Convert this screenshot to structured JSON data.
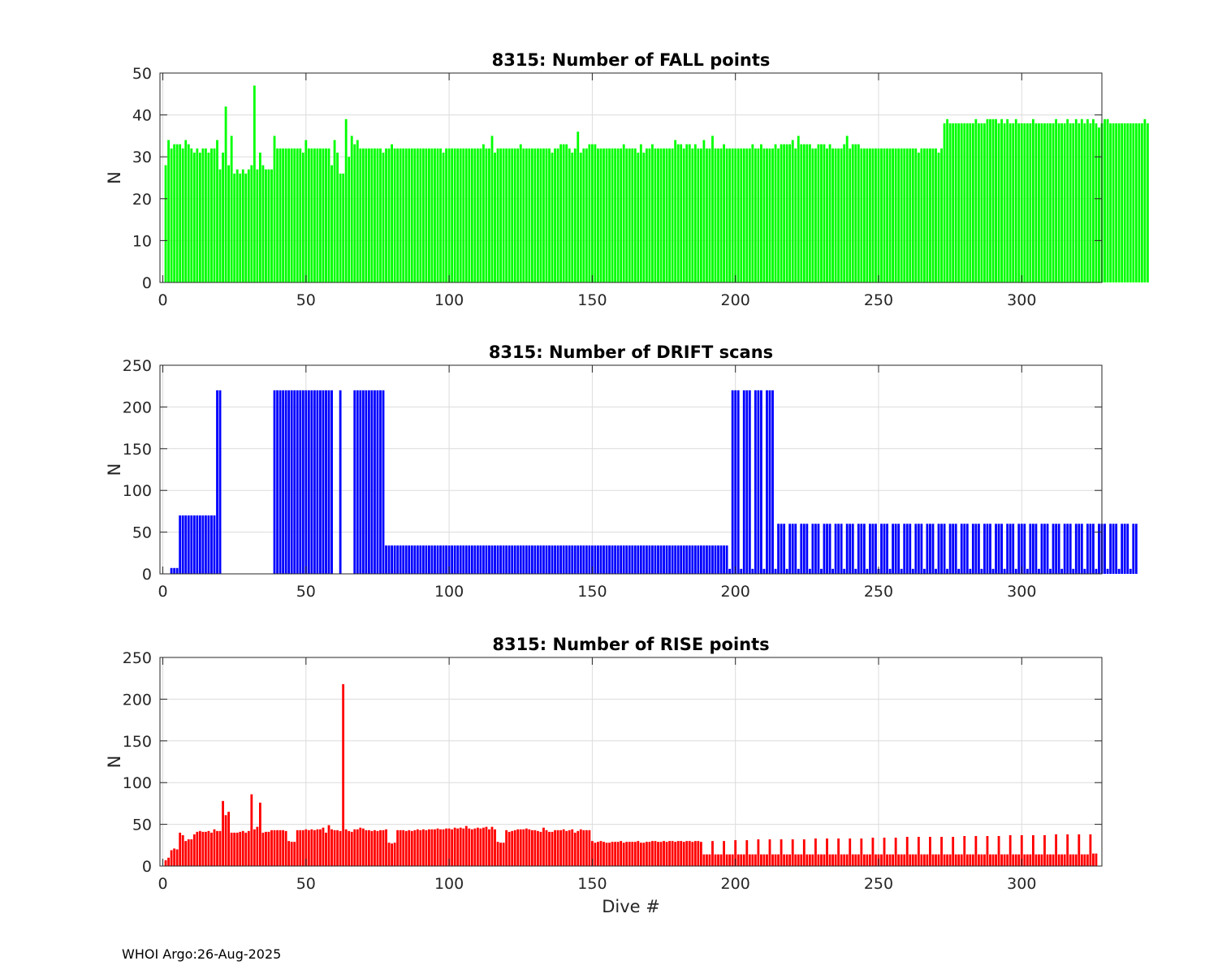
{
  "footer": "WHOI Argo:26-Aug-2025",
  "chart_data": [
    {
      "type": "bar",
      "title": "8315: Number of FALL points",
      "xlabel": "",
      "ylabel": "N",
      "xlim": [
        -1,
        328
      ],
      "ylim": [
        0,
        50
      ],
      "xticks": [
        0,
        50,
        100,
        150,
        200,
        250,
        300
      ],
      "yticks": [
        0,
        10,
        20,
        30,
        40,
        50
      ],
      "grid": true,
      "color": "#00ff00",
      "x_start": 1,
      "values": [
        28,
        34,
        32,
        33,
        33,
        33,
        32,
        34,
        33,
        32,
        31,
        32,
        31,
        32,
        32,
        31,
        32,
        32,
        34,
        27,
        31,
        42,
        28,
        35,
        26,
        27,
        26,
        27,
        26,
        27,
        28,
        47,
        27,
        31,
        28,
        27,
        27,
        27,
        35,
        32,
        32,
        32,
        32,
        32,
        32,
        32,
        32,
        32,
        31,
        34,
        32,
        32,
        32,
        32,
        32,
        32,
        32,
        32,
        28,
        34,
        31,
        26,
        26,
        39,
        30,
        35,
        33,
        34,
        32,
        32,
        32,
        32,
        32,
        32,
        32,
        32,
        31,
        32,
        32,
        33,
        32,
        32,
        32,
        32,
        32,
        32,
        32,
        32,
        32,
        32,
        32,
        32,
        32,
        32,
        32,
        32,
        32,
        31,
        32,
        32,
        32,
        32,
        32,
        32,
        32,
        32,
        32,
        32,
        32,
        32,
        32,
        33,
        32,
        32,
        35,
        31,
        32,
        32,
        32,
        32,
        32,
        32,
        32,
        32,
        33,
        32,
        32,
        32,
        32,
        32,
        32,
        32,
        32,
        32,
        32,
        31,
        32,
        32,
        33,
        33,
        33,
        32,
        31,
        32,
        36,
        31,
        32,
        32,
        33,
        33,
        33,
        32,
        32,
        32,
        32,
        32,
        32,
        32,
        32,
        32,
        33,
        32,
        32,
        32,
        32,
        31,
        33,
        31,
        32,
        32,
        33,
        32,
        32,
        32,
        32,
        32,
        32,
        32,
        34,
        33,
        33,
        32,
        33,
        33,
        32,
        33,
        32,
        32,
        34,
        32,
        32,
        35,
        32,
        32,
        32,
        33,
        32,
        32,
        32,
        32,
        32,
        32,
        32,
        32,
        32,
        33,
        32,
        32,
        33,
        32,
        32,
        32,
        32,
        33,
        32,
        33,
        33,
        33,
        33,
        34,
        32,
        35,
        33,
        33,
        33,
        33,
        32,
        32,
        33,
        33,
        33,
        32,
        33,
        32,
        32,
        32,
        32,
        33,
        35,
        32,
        33,
        33,
        33,
        32,
        32,
        32,
        32,
        32,
        32,
        32,
        32,
        32,
        32,
        32,
        32,
        32,
        32,
        32,
        32,
        32,
        32,
        32,
        32,
        31,
        32,
        32,
        32,
        32,
        32,
        32,
        31,
        32,
        38,
        39,
        38,
        38,
        38,
        38,
        38,
        38,
        38,
        38,
        38,
        39,
        38,
        38,
        38,
        39,
        39,
        39,
        39,
        38,
        39,
        38,
        39,
        38,
        38,
        39,
        38,
        38,
        38,
        38,
        38,
        39,
        38,
        38,
        38,
        38,
        38,
        38,
        38,
        39,
        38,
        38,
        38,
        39,
        38,
        38,
        39,
        38,
        39,
        38,
        39,
        38,
        39,
        38,
        37,
        38,
        39,
        39,
        38,
        38,
        38,
        38,
        38,
        38,
        38,
        38,
        38,
        38,
        38,
        38,
        39,
        38
      ]
    },
    {
      "type": "bar",
      "title": "8315: Number of DRIFT scans",
      "xlabel": "",
      "ylabel": "N",
      "xlim": [
        -1,
        328
      ],
      "ylim": [
        0,
        250
      ],
      "xticks": [
        0,
        50,
        100,
        150,
        200,
        250,
        300
      ],
      "yticks": [
        0,
        50,
        100,
        150,
        200,
        250
      ],
      "grid": true,
      "color": "#0000ff",
      "x_start": 1,
      "values": [
        0,
        0,
        7,
        7,
        7,
        70,
        70,
        70,
        70,
        70,
        70,
        70,
        70,
        70,
        70,
        70,
        70,
        70,
        220,
        220,
        0,
        0,
        0,
        0,
        0,
        0,
        0,
        0,
        0,
        0,
        0,
        0,
        0,
        0,
        0,
        0,
        0,
        0,
        220,
        220,
        220,
        220,
        220,
        220,
        220,
        220,
        220,
        220,
        220,
        220,
        220,
        220,
        220,
        220,
        220,
        220,
        220,
        220,
        220,
        0,
        0,
        220,
        0,
        0,
        0,
        0,
        220,
        220,
        220,
        220,
        220,
        220,
        220,
        220,
        220,
        220,
        220,
        34,
        34,
        34,
        34,
        34,
        34,
        34,
        34,
        34,
        34,
        34,
        34,
        34,
        34,
        34,
        34,
        34,
        34,
        34,
        34,
        34,
        34,
        34,
        34,
        34,
        34,
        34,
        34,
        34,
        34,
        34,
        34,
        34,
        34,
        34,
        34,
        34,
        34,
        34,
        34,
        34,
        34,
        34,
        34,
        34,
        34,
        34,
        34,
        34,
        34,
        34,
        34,
        34,
        34,
        34,
        34,
        34,
        34,
        34,
        34,
        34,
        34,
        34,
        34,
        34,
        34,
        34,
        34,
        34,
        34,
        34,
        34,
        34,
        34,
        34,
        34,
        34,
        34,
        34,
        34,
        34,
        34,
        34,
        34,
        34,
        34,
        34,
        34,
        34,
        34,
        34,
        34,
        34,
        34,
        34,
        34,
        34,
        34,
        34,
        34,
        34,
        34,
        34,
        34,
        34,
        34,
        34,
        34,
        34,
        34,
        34,
        34,
        34,
        34,
        34,
        34,
        34,
        34,
        34,
        34,
        6,
        220,
        220,
        220,
        6,
        220,
        220,
        220,
        6,
        220,
        220,
        220,
        6,
        220,
        220,
        220,
        6,
        60,
        60,
        60,
        6,
        60,
        60,
        60,
        6,
        60,
        60,
        60,
        6,
        60,
        60,
        60,
        6,
        60,
        60,
        60,
        6,
        60,
        60,
        60,
        6,
        60,
        60,
        60,
        6,
        60,
        60,
        60,
        6,
        60,
        60,
        60,
        6,
        60,
        60,
        60,
        6,
        60,
        60,
        60,
        6,
        60,
        60,
        60,
        6,
        60,
        60,
        60,
        6,
        60,
        60,
        60,
        6,
        60,
        60,
        60,
        6,
        60,
        60,
        60,
        6,
        60,
        60,
        60,
        6,
        60,
        60,
        60,
        6,
        60,
        60,
        60,
        6,
        60,
        60,
        60,
        6,
        60,
        60,
        60,
        6,
        60,
        60,
        60,
        6,
        60,
        60,
        60,
        6,
        60,
        60,
        60,
        6,
        60,
        60,
        60,
        6,
        60,
        60,
        60,
        6,
        60,
        60,
        60,
        6,
        60,
        60,
        60,
        6,
        60,
        60,
        60,
        6,
        60,
        60,
        60,
        6,
        60,
        60,
        60,
        6,
        60,
        60
      ]
    },
    {
      "type": "bar",
      "title": "8315: Number of RISE points",
      "xlabel": "Dive #",
      "ylabel": "N",
      "xlim": [
        -1,
        328
      ],
      "ylim": [
        0,
        250
      ],
      "xticks": [
        0,
        50,
        100,
        150,
        200,
        250,
        300
      ],
      "yticks": [
        0,
        50,
        100,
        150,
        200,
        250
      ],
      "grid": true,
      "color": "#ff0000",
      "x_start": 1,
      "values": [
        7,
        10,
        19,
        21,
        20,
        40,
        37,
        30,
        32,
        32,
        38,
        41,
        42,
        41,
        41,
        42,
        40,
        44,
        42,
        42,
        78,
        61,
        65,
        40,
        40,
        40,
        41,
        42,
        40,
        42,
        86,
        44,
        47,
        76,
        40,
        41,
        41,
        43,
        43,
        43,
        43,
        43,
        42,
        30,
        29,
        29,
        43,
        43,
        43,
        44,
        43,
        44,
        43,
        44,
        44,
        46,
        40,
        49,
        44,
        43,
        43,
        42,
        218,
        44,
        42,
        41,
        44,
        44,
        46,
        45,
        43,
        43,
        42,
        43,
        42,
        43,
        43,
        44,
        28,
        27,
        28,
        43,
        43,
        43,
        42,
        43,
        42,
        43,
        44,
        43,
        44,
        43,
        44,
        44,
        44,
        45,
        44,
        44,
        45,
        45,
        44,
        46,
        45,
        46,
        45,
        48,
        45,
        44,
        45,
        46,
        45,
        46,
        47,
        44,
        47,
        44,
        29,
        28,
        28,
        43,
        41,
        42,
        43,
        44,
        44,
        44,
        45,
        44,
        43,
        43,
        42,
        41,
        46,
        43,
        41,
        41,
        43,
        43,
        43,
        44,
        42,
        43,
        44,
        40,
        42,
        44,
        43,
        43,
        43,
        30,
        28,
        29,
        30,
        29,
        28,
        28,
        29,
        29,
        29,
        30,
        28,
        29,
        29,
        29,
        29,
        30,
        28,
        28,
        29,
        29,
        30,
        30,
        29,
        29,
        30,
        29,
        30,
        30,
        29,
        30,
        30,
        29,
        30,
        30,
        29,
        30,
        30,
        29,
        14,
        14,
        14,
        30,
        14,
        14,
        14,
        30,
        14,
        14,
        14,
        31,
        14,
        14,
        14,
        31,
        14,
        14,
        14,
        32,
        14,
        14,
        14,
        32,
        14,
        14,
        14,
        32,
        14,
        14,
        14,
        32,
        14,
        14,
        14,
        32,
        14,
        14,
        14,
        33,
        14,
        14,
        14,
        33,
        14,
        14,
        14,
        33,
        14,
        14,
        14,
        33,
        14,
        14,
        14,
        33,
        14,
        14,
        14,
        34,
        14,
        14,
        14,
        34,
        14,
        14,
        14,
        34,
        14,
        14,
        14,
        35,
        14,
        14,
        14,
        35,
        14,
        14,
        14,
        35,
        14,
        14,
        14,
        35,
        14,
        14,
        14,
        35,
        14,
        14,
        14,
        36,
        14,
        14,
        14,
        36,
        14,
        14,
        14,
        36,
        14,
        14,
        14,
        36,
        14,
        14,
        14,
        37,
        14,
        14,
        14,
        37,
        14,
        14,
        14,
        37,
        14,
        14,
        14,
        37,
        14,
        14,
        14,
        38,
        14,
        14,
        14,
        38,
        14,
        14,
        14,
        38,
        14,
        14,
        14,
        38,
        15,
        15
      ]
    }
  ]
}
